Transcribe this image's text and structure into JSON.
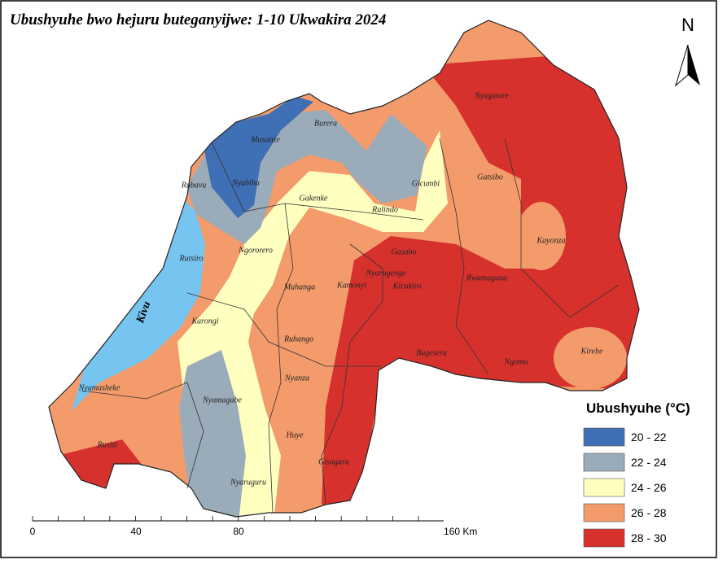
{
  "title": "Ubushyuhe bwo hejuru buteganyijwe: 1-10 Ukwakira 2024",
  "north": "N",
  "lake": "Kivu",
  "districts": [
    "Nyagatare",
    "Burera",
    "Musanze",
    "Nyabihu",
    "Rubavu",
    "Gicumbi",
    "Gatsibo",
    "Gakenke",
    "Rulindo",
    "Ngororero",
    "Rutsiro",
    "Kayonza",
    "Gasabo",
    "Nyarugenge",
    "Kicukiro",
    "Rwamagana",
    "Kamonyi",
    "Muhanga",
    "Karongi",
    "Ruhango",
    "Bugesera",
    "Ngoma",
    "Kirehe",
    "Nyanza",
    "Nyamasheke",
    "Nyamagabe",
    "Huye",
    "Rusizi",
    "Gisagara",
    "Nyaruguru"
  ],
  "legend": {
    "title": "Ubushyuhe (°C)",
    "items": [
      {
        "label": "20 - 22",
        "color": "#3f6fb5"
      },
      {
        "label": "22 - 24",
        "color": "#9aabb9"
      },
      {
        "label": "24 - 26",
        "color": "#ffffc0"
      },
      {
        "label": "26 - 28",
        "color": "#f39b6b"
      },
      {
        "label": "28 - 30",
        "color": "#d7312e"
      }
    ]
  },
  "lake_color": "#76c4f0",
  "scale_bar": [
    "0",
    "40",
    "80",
    "160 Km"
  ]
}
